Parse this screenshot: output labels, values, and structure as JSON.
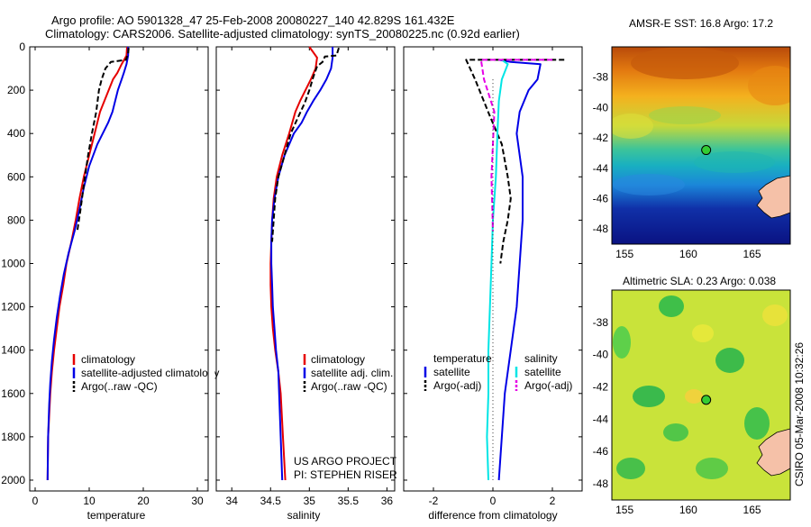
{
  "header": {
    "line1": "Argo profile: AO 5901328_47 25-Feb-2008 20080227_140 42.829S 161.432E",
    "line2": "Climatology: CARS2006. Satellite-adjusted climatology: synTS_20080225.nc (0.92d earlier)"
  },
  "side_label": "CSIRO 05-Mar-2008 10:32:26",
  "project_label": {
    "line1": "US ARGO PROJECT",
    "line2": "PI: STEPHEN RISER"
  },
  "colors": {
    "climatology": "#e60000",
    "satellite": "#0000e6",
    "argo": "#000000",
    "salinity_satellite": "#00e5e5",
    "salinity_argo": "#e600e6",
    "marker": "#33cc33"
  },
  "chart_data": [
    {
      "type": "line",
      "xlabel": "temperature",
      "xlim": [
        -1,
        32
      ],
      "ylim": [
        2050,
        0
      ],
      "xticks": [
        0,
        10,
        20,
        30
      ],
      "yticks": [
        0,
        200,
        400,
        600,
        800,
        1000,
        1200,
        1400,
        1600,
        1800,
        2000
      ],
      "legend": [
        "climatology",
        "satellite-adjusted climatology",
        "Argo(..raw -QC)"
      ],
      "series": [
        {
          "name": "climatology",
          "style": "solid",
          "color": "#e60000",
          "x": [
            17.0,
            16.9,
            16.0,
            15.2,
            14.4,
            13.6,
            12.8,
            12.0,
            11.0,
            10.0,
            9.0,
            8.2,
            7.5,
            6.7,
            5.8,
            5.2,
            4.5,
            4.0,
            3.5,
            3.1,
            2.8,
            2.6,
            2.4,
            2.3
          ],
          "y": [
            0,
            40,
            80,
            120,
            150,
            200,
            250,
            300,
            400,
            500,
            600,
            700,
            800,
            900,
            1000,
            1100,
            1200,
            1300,
            1400,
            1500,
            1600,
            1700,
            1800,
            2000
          ]
        },
        {
          "name": "satellite-adjusted climatology",
          "style": "solid",
          "color": "#0000e6",
          "x": [
            17.2,
            17.2,
            16.9,
            16.4,
            16.0,
            15.3,
            14.8,
            14.3,
            13.5,
            11.5,
            10.0,
            9.0,
            8.2,
            7.3,
            6.2,
            5.3,
            4.6,
            4.0,
            3.5,
            3.1,
            2.8,
            2.6,
            2.4,
            2.3
          ],
          "y": [
            0,
            40,
            80,
            120,
            150,
            200,
            250,
            300,
            350,
            450,
            550,
            650,
            750,
            850,
            950,
            1050,
            1150,
            1250,
            1350,
            1450,
            1550,
            1650,
            1800,
            2000
          ]
        },
        {
          "name": "Argo(..raw -QC)",
          "style": "dashed",
          "color": "#000000",
          "x": [
            17.3,
            17.2,
            16.8,
            14.0,
            13.0,
            12.3,
            11.8,
            11.3,
            10.5,
            9.8,
            9.2,
            8.4,
            7.8
          ],
          "y": [
            5,
            30,
            60,
            70,
            100,
            150,
            200,
            300,
            400,
            500,
            600,
            750,
            850
          ]
        }
      ]
    },
    {
      "type": "line",
      "xlabel": "salinity",
      "xlim": [
        33.8,
        36.1
      ],
      "ylim": [
        2050,
        0
      ],
      "xticks": [
        34,
        34.5,
        35,
        35.5,
        36
      ],
      "legend": [
        "climatology",
        "satellite adj. clim.",
        "Argo(..raw -QC)"
      ],
      "series": [
        {
          "name": "climatology",
          "style": "solid",
          "color": "#e60000",
          "x": [
            35.0,
            35.1,
            35.08,
            35.02,
            34.95,
            34.88,
            34.82,
            34.74,
            34.65,
            34.58,
            34.54,
            34.52,
            34.51,
            34.5,
            34.5,
            34.51,
            34.53,
            34.56,
            34.6,
            34.63,
            34.66,
            34.69
          ],
          "y": [
            0,
            50,
            100,
            150,
            200,
            250,
            300,
            400,
            500,
            600,
            700,
            800,
            900,
            1000,
            1100,
            1200,
            1300,
            1400,
            1500,
            1600,
            1800,
            2000
          ]
        },
        {
          "name": "satellite adj. clim.",
          "style": "solid",
          "color": "#0000e6",
          "x": [
            35.3,
            35.3,
            35.28,
            35.22,
            35.14,
            35.05,
            34.97,
            34.9,
            34.8,
            34.68,
            34.6,
            34.55,
            34.52,
            34.51,
            34.51,
            34.52,
            34.53,
            34.55,
            34.57,
            34.6,
            34.63,
            34.65
          ],
          "y": [
            0,
            50,
            100,
            150,
            200,
            250,
            300,
            350,
            400,
            500,
            600,
            700,
            800,
            900,
            1000,
            1100,
            1200,
            1300,
            1400,
            1500,
            1800,
            2000
          ]
        },
        {
          "name": "Argo(..raw -QC)",
          "style": "dashed",
          "color": "#000000",
          "x": [
            35.38,
            35.35,
            35.2,
            35.17,
            35.1,
            35.05,
            35.0,
            34.94,
            34.86,
            34.76,
            34.68,
            34.6,
            34.56,
            34.54,
            34.52
          ],
          "y": [
            5,
            40,
            45,
            70,
            90,
            140,
            200,
            260,
            320,
            400,
            500,
            600,
            700,
            800,
            900
          ]
        }
      ]
    },
    {
      "type": "line",
      "xlabel": "difference from climatology",
      "xlim": [
        -3,
        3
      ],
      "ylim": [
        2050,
        0
      ],
      "xticks": [
        -2,
        0,
        2
      ],
      "legend_groups": [
        {
          "title": "temperature",
          "entries": [
            "satellite",
            "Argo(-adj)"
          ]
        },
        {
          "title": "salinity",
          "entries": [
            "satellite",
            "Argo(-adj)"
          ]
        }
      ],
      "series": [
        {
          "name": "temperature satellite",
          "style": "solid",
          "color": "#0000e6",
          "x": [
            0.2,
            0.6,
            1.6,
            1.5,
            1.2,
            0.9,
            0.8,
            0.9,
            1.0,
            1.0,
            0.9,
            0.8,
            0.7,
            0.6,
            0.5,
            0.4,
            0.3,
            0.2
          ],
          "y": [
            60,
            70,
            80,
            150,
            200,
            300,
            400,
            500,
            600,
            800,
            1000,
            1200,
            1300,
            1400,
            1500,
            1600,
            1800,
            2000
          ]
        },
        {
          "name": "temperature Argo(-adj)",
          "style": "dashed",
          "color": "#000000",
          "x": [
            2.4,
            -0.9,
            -0.6,
            -0.1,
            0.3,
            0.5,
            0.6,
            0.5,
            0.35,
            0.25
          ],
          "y": [
            60,
            60,
            150,
            320,
            450,
            600,
            700,
            800,
            900,
            1000
          ]
        },
        {
          "name": "salinity satellite",
          "style": "solid",
          "color": "#00e5e5",
          "x": [
            0.3,
            0.5,
            0.3,
            0.2,
            0.15,
            0.1,
            0.0,
            -0.05,
            -0.1,
            -0.15,
            -0.15,
            -0.2,
            -0.15
          ],
          "y": [
            60,
            80,
            150,
            250,
            400,
            600,
            800,
            1000,
            1200,
            1400,
            1600,
            1800,
            2000
          ]
        },
        {
          "name": "salinity Argo(-adj)",
          "style": "dashed",
          "color": "#e600e6",
          "x": [
            2.0,
            -0.4,
            -0.3,
            0.05,
            0.0,
            -0.05,
            0.0
          ],
          "y": [
            60,
            60,
            150,
            300,
            450,
            600,
            850
          ]
        }
      ]
    },
    {
      "type": "heatmap",
      "title": "AMSR-E SST: 16.8 Argo: 17.2",
      "xlim": [
        154,
        168
      ],
      "ylim": [
        -49,
        -36
      ],
      "xticks": [
        155,
        160,
        165
      ],
      "yticks": [
        -38,
        -40,
        -42,
        -44,
        -46,
        -48
      ],
      "marker": {
        "lon": 161.4,
        "lat": -42.8
      }
    },
    {
      "type": "heatmap",
      "title": "Altimetric SLA: 0.23 Argo: 0.038",
      "xlim": [
        154,
        168
      ],
      "ylim": [
        -49,
        -36
      ],
      "xticks": [
        155,
        160,
        165
      ],
      "yticks": [
        -38,
        -40,
        -42,
        -44,
        -46,
        -48
      ],
      "marker": {
        "lon": 161.4,
        "lat": -42.8
      }
    }
  ]
}
